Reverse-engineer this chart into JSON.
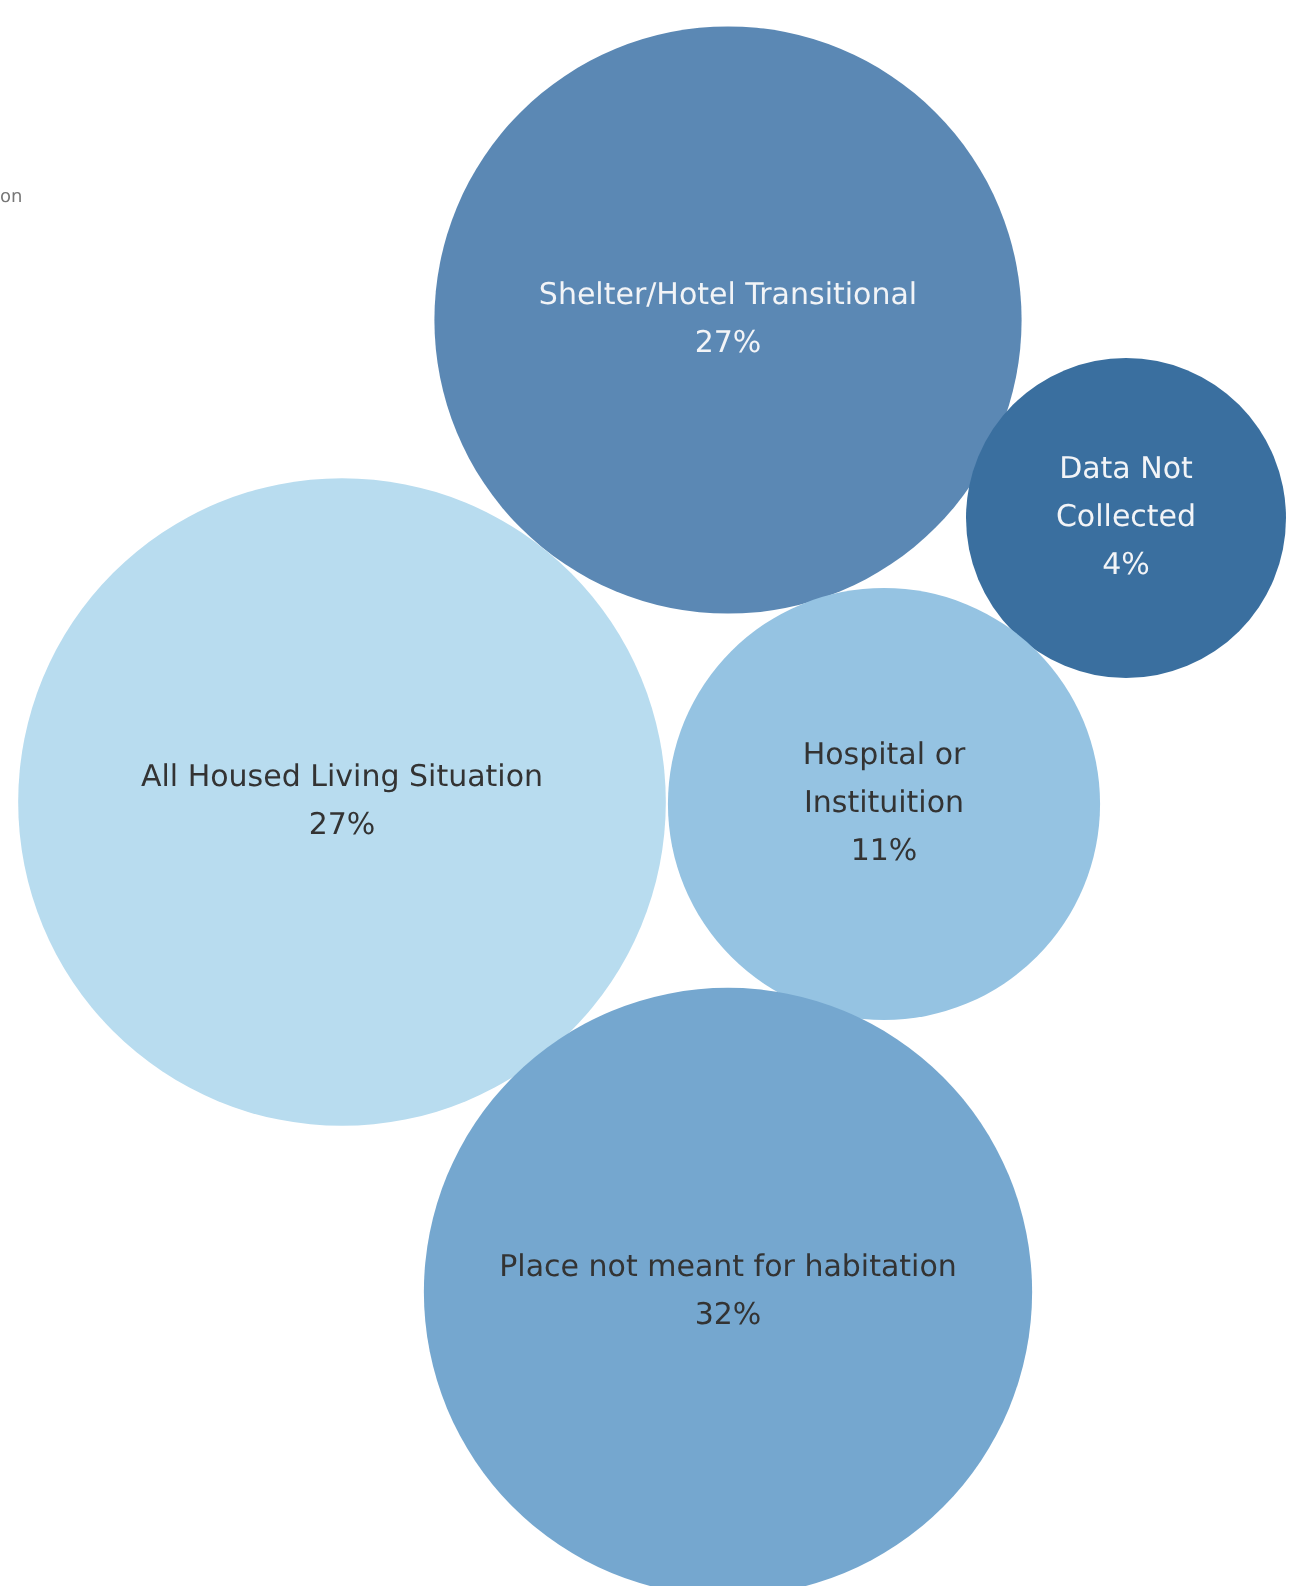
{
  "chart_data": {
    "type": "other",
    "categories": [
      "Shelter/Hotel Transitional",
      "Data Not Collected",
      "All Housed Living Situation",
      "Hospital or Instituition",
      "Place not meant for habitation"
    ],
    "values": [
      27,
      4,
      27,
      11,
      32
    ],
    "value_labels": [
      "27%",
      "4%",
      "27%",
      "11%",
      "32%"
    ],
    "colors": [
      "#5b88b4",
      "#3a6f9f",
      "#b8dcef",
      "#95c3e2",
      "#75a7cf"
    ],
    "annotations": [
      "on"
    ]
  }
}
